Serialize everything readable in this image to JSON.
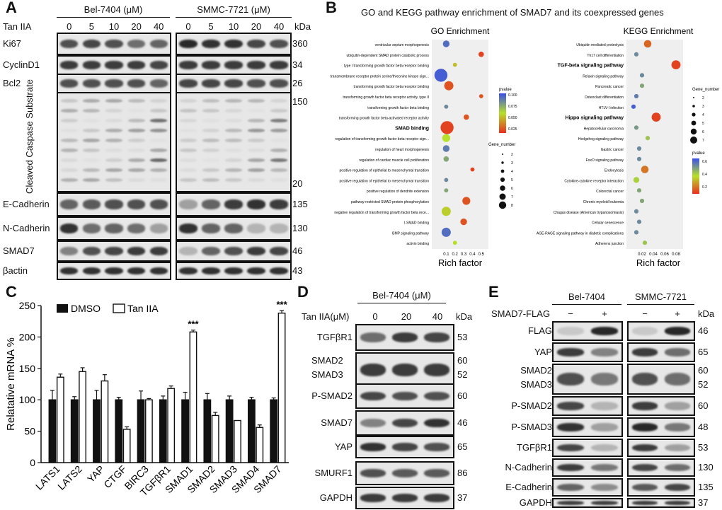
{
  "panelA": {
    "label": "A",
    "group1": "Bel-7404 (μM)",
    "group2": "SMMC-7721 (μM)",
    "treatment": "Tan IIA",
    "doses": [
      "0",
      "5",
      "10",
      "20",
      "40"
    ],
    "kda": "kDa",
    "rows": [
      {
        "name": "Ki67",
        "kda": "360"
      },
      {
        "name": "CyclinD1",
        "kda": "34"
      },
      {
        "name": "Bcl2",
        "kda": "26"
      },
      {
        "name": "Cleaved Caspase Substrate",
        "kda": "150",
        "kda2": "20"
      },
      {
        "name": "E-Cadherin",
        "kda": "135"
      },
      {
        "name": "N-Cadherin",
        "kda": "130"
      },
      {
        "name": "SMAD7",
        "kda": "46"
      },
      {
        "name": "βactin",
        "kda": "43"
      }
    ]
  },
  "panelB": {
    "label": "B",
    "title": "GO and KEGG pathway enrichment of SMAD7 and its coexpressed genes",
    "go": {
      "subtitle": "GO Enrichment",
      "xlabel": "Rich factor",
      "ticks": [
        "0.1",
        "0.2",
        "0.3",
        "0.4",
        "0.5"
      ],
      "terms": [
        "ventricular septum morphogenesis",
        "ubiquitin-dependent SMAD protein catabolic process",
        "type I transforming growth factor beta receptor binding",
        "transmembrane receptor protein serine/threonine kinase sign...",
        "transforming growth factor beta receptor binding",
        "transforming growth factor beta receptor activity, type II",
        "transforming growth factor beta binding",
        "transforming growth factor beta-activated receptor activity",
        "SMAD binding",
        "regulation of transforming growth factor beta receptor sign...",
        "regulation of heart morphogenesis",
        "regulation of cardiac muscle cell proliferation",
        "positive regulation of epithelial to mesenchymal transition",
        "positive regulation of epithelial to mesenchymal transition",
        "positive regulation of dendrite extension",
        "pathway-restricted SMAD protein phosphorylation",
        "negative regulation of transforming growth factor beta rece...",
        "I-SMAD binding",
        "BMP signaling pathway",
        "activin binding"
      ],
      "pvalue_title": "pvalue",
      "pvalue_ticks": [
        "0.100",
        "0.075",
        "0.050",
        "0.025"
      ],
      "gene_title": "Gene_number",
      "gene_ticks": [
        "2",
        "3",
        "4",
        "5",
        "6",
        "7",
        "8"
      ]
    },
    "kegg": {
      "subtitle": "KEGG Enrichment",
      "xlabel": "Rich factor",
      "ticks": [
        "0.02",
        "0.04",
        "0.06",
        "0.08"
      ],
      "terms": [
        "Ubiquitin mediated proteolysis",
        "Th17 cell differentiation",
        "TGF-beta signaling pathway",
        "Relaxin signaling pathway",
        "Pancreatic cancer",
        "Osteoclast differentiation",
        "HTLV-I infection",
        "Hippo signaling pathway",
        "Hepatocellular carcinoma",
        "Hedgehog signaling pathway",
        "Gastric cancer",
        "FoxO signaling pathway",
        "Endocytosis",
        "Cytokine-cytokine receptor interaction",
        "Colorectal cancer",
        "Chronic myeloid leukemia",
        "Chagas disease (American trypanosomiasis)",
        "Cellular senescence",
        "AGE-RAGE signaling pathway in diabetic complications",
        "Adherens junction"
      ],
      "gene_title": "Gene_number",
      "gene_ticks": [
        "2",
        "3",
        "4",
        "5",
        "6",
        "7"
      ],
      "pvalue_title": "pvalue",
      "pvalue_ticks": [
        "0.6",
        "0.4",
        "0.2"
      ]
    },
    "colors": {
      "low": "#e8301f",
      "mid": "#b6e02c",
      "high": "#3a50e6"
    }
  },
  "panelC": {
    "label": "C",
    "chart_data": {
      "type": "bar",
      "categories": [
        "LATS1",
        "LATS2",
        "YAP",
        "CTGF",
        "BIRC3",
        "TGFβR1",
        "SMAD1",
        "SMAD2",
        "SMAD3",
        "SMAD4",
        "SMAD7"
      ],
      "series": [
        {
          "name": "DMSO",
          "values": [
            100,
            100,
            100,
            100,
            100,
            100,
            100,
            100,
            100,
            100,
            100
          ],
          "errors": [
            15,
            5,
            15,
            4,
            14,
            6,
            12,
            10,
            6,
            4,
            3
          ]
        },
        {
          "name": "Tan IIA",
          "values": [
            136,
            145,
            130,
            53,
            100,
            118,
            208,
            75,
            67,
            56,
            238
          ],
          "errors": [
            5,
            6,
            10,
            4,
            2,
            4,
            3,
            5,
            0,
            4,
            4
          ]
        }
      ],
      "ylabel": "Relatative mRNA %",
      "ylim": [
        0,
        250
      ],
      "yticks": [
        "0",
        "50",
        "100",
        "150",
        "200",
        "250"
      ],
      "annotations": [
        {
          "category": "SMAD1",
          "text": "***"
        },
        {
          "category": "SMAD7",
          "text": "***"
        }
      ],
      "legend": "top-left"
    }
  },
  "panelD": {
    "label": "D",
    "group": "Bel-7404 (μM)",
    "treatment": "Tan IIA(μM)",
    "doses": [
      "0",
      "20",
      "40"
    ],
    "kda": "kDa",
    "rows": [
      {
        "name": "TGFβR1",
        "kda": "53"
      },
      {
        "name": "SMAD2",
        "kda": "60",
        "name2": "SMAD3",
        "kda2": "52"
      },
      {
        "name": "P-SMAD2",
        "kda": "60"
      },
      {
        "name": "SMAD7",
        "kda": "46"
      },
      {
        "name": "YAP",
        "kda": "65"
      },
      {
        "name": "SMURF1",
        "kda": "86"
      },
      {
        "name": "GAPDH",
        "kda": "37"
      }
    ]
  },
  "panelE": {
    "label": "E",
    "group1": "Bel-7404",
    "group2": "SMMC-7721",
    "construct": "SMAD7-FLAG",
    "signs": [
      "−",
      "+"
    ],
    "kda": "kDa",
    "rows": [
      {
        "name": "FLAG",
        "kda": "46"
      },
      {
        "name": "YAP",
        "kda": "65"
      },
      {
        "name": "SMAD2",
        "kda": "60",
        "name2": "SMAD3",
        "kda2": "52"
      },
      {
        "name": "P-SMAD2",
        "kda": "60"
      },
      {
        "name": "P-SMAD3",
        "kda": "48"
      },
      {
        "name": "TGFβR1",
        "kda": "53"
      },
      {
        "name": "N-Cadherin",
        "kda": "130"
      },
      {
        "name": "E-Cadherin",
        "kda": "135"
      },
      {
        "name": "GAPDH",
        "kda": "37"
      }
    ]
  }
}
